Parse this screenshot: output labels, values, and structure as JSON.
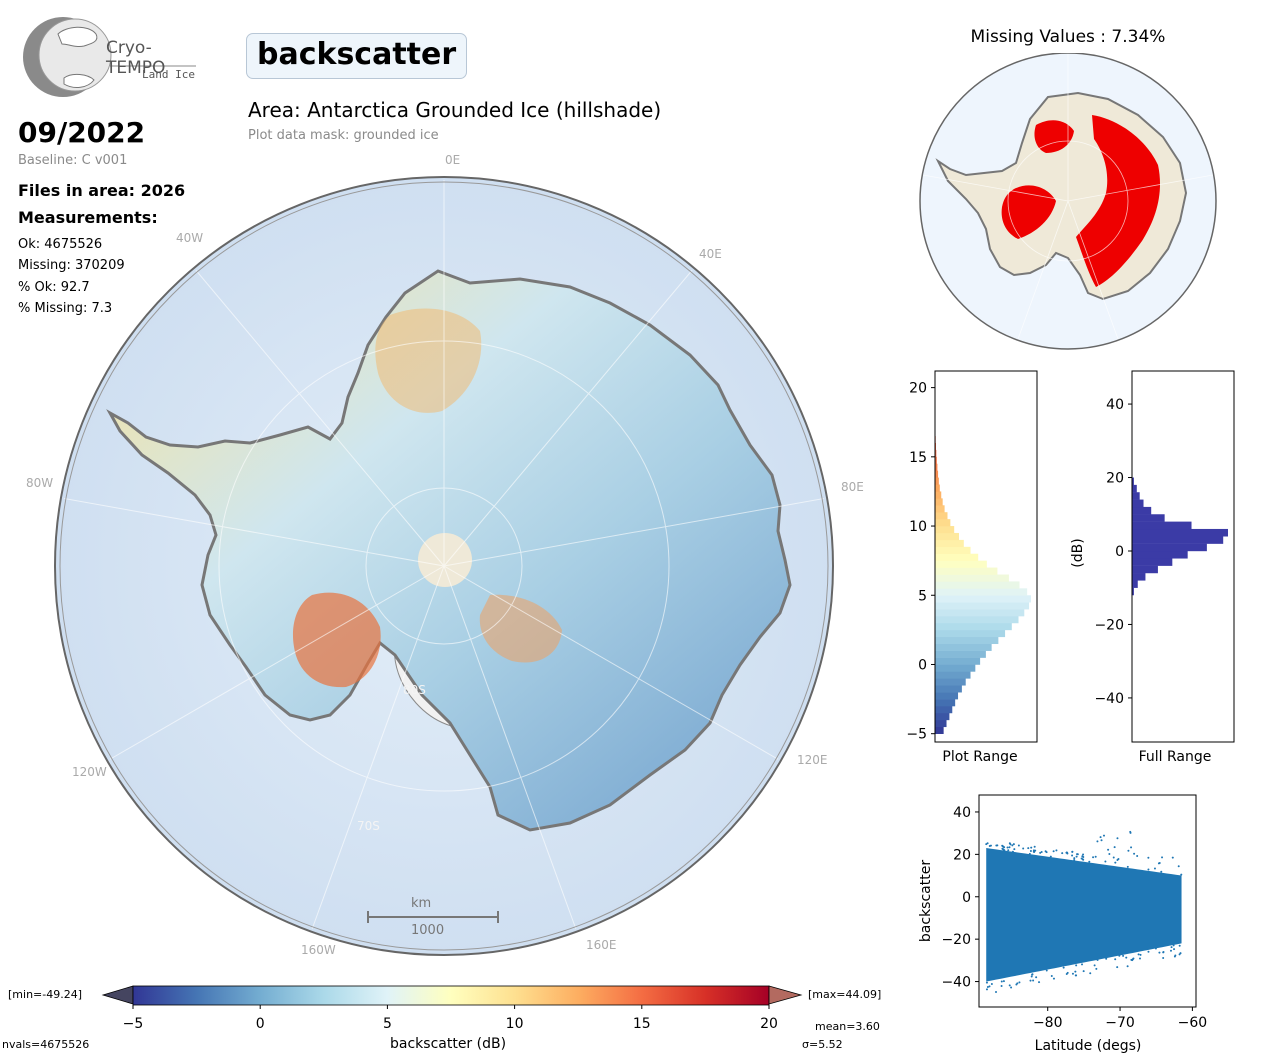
{
  "logo": {
    "name": "Cryo-TEMPO",
    "subtitle": "Land Ice"
  },
  "variable": "backscatter",
  "area_title": "Area: Antarctica Grounded Ice (hillshade)",
  "mask_note": "Plot data mask: grounded ice",
  "date": "09/2022",
  "baseline": "Baseline: C v001",
  "files": "Files in area: 2026",
  "measurements_title": "Measurements:",
  "stats": {
    "ok": "Ok: 4675526",
    "missing": "Missing: 370209",
    "pct_ok": "% Ok: 92.7",
    "pct_missing": "% Missing: 7.3"
  },
  "map_labels": {
    "lon_0E": "0E",
    "lon_40W": "40W",
    "lon_40E": "40E",
    "lon_80W": "80W",
    "lon_80E": "80E",
    "lon_120W": "120W",
    "lon_120E": "120E",
    "lon_160W": "160W",
    "lon_160E": "160E",
    "lat_80S": "80S",
    "lat_70S": "70S"
  },
  "scalebar": {
    "unit": "km",
    "value": "1000"
  },
  "missing_title": "Missing Values : 7.34%",
  "colorbar": {
    "label": "backscatter (dB)",
    "min_label": "[min=-49.24]",
    "max_label": "[max=44.09]",
    "nvals": "nvals=4675526",
    "mean": "mean=3.60",
    "sigma": "σ=5.52"
  },
  "colors": {
    "ocean": "#d3e3f3",
    "ice_shelf": "#f1f1f1",
    "coast": "#777777",
    "missing": "#ee0000",
    "scatter": "#1f77b4",
    "fullhist": "#3b3ba6",
    "pole_hole": "#efe9d8"
  },
  "chart_data": [
    {
      "type": "bar",
      "orientation": "horizontal",
      "xlabel": "Plot Range",
      "ylim": [
        -5.6,
        21.2
      ],
      "yticks": [
        -5,
        0,
        5,
        10,
        15,
        20
      ],
      "bins": [
        -5,
        -4.5,
        -4,
        -3.5,
        -3,
        -2.5,
        -2,
        -1.5,
        -1,
        -0.5,
        0,
        0.5,
        1,
        1.5,
        2,
        2.5,
        3,
        3.5,
        4,
        4.5,
        5,
        5.5,
        6,
        6.5,
        7,
        7.5,
        8,
        8.5,
        9,
        9.5,
        10,
        10.5,
        11,
        11.5,
        12,
        12.5,
        13,
        13.5,
        14,
        14.5,
        15,
        15.5,
        16,
        16.5,
        17
      ],
      "values": [
        0.09,
        0.12,
        0.15,
        0.18,
        0.21,
        0.24,
        0.28,
        0.32,
        0.37,
        0.42,
        0.47,
        0.53,
        0.59,
        0.66,
        0.73,
        0.8,
        0.87,
        0.93,
        0.98,
        1.0,
        0.96,
        0.88,
        0.77,
        0.65,
        0.54,
        0.45,
        0.37,
        0.3,
        0.25,
        0.2,
        0.16,
        0.13,
        0.1,
        0.08,
        0.065,
        0.05,
        0.04,
        0.032,
        0.025,
        0.019,
        0.014,
        0.01,
        0.007,
        0.004,
        0.002
      ]
    },
    {
      "type": "bar",
      "orientation": "horizontal",
      "xlabel": "Full Range",
      "ylabel": "(dB)",
      "ylim": [
        -52,
        49
      ],
      "yticks": [
        -40,
        -20,
        0,
        20,
        40
      ],
      "bins": [
        -12,
        -10,
        -8,
        -6,
        -4,
        -2,
        0,
        2,
        4,
        6,
        8,
        10,
        12,
        14,
        16,
        18
      ],
      "values": [
        0.02,
        0.06,
        0.14,
        0.27,
        0.42,
        0.58,
        0.78,
        0.95,
        1.0,
        0.62,
        0.34,
        0.2,
        0.12,
        0.08,
        0.05,
        0.02
      ]
    },
    {
      "type": "scatter",
      "xlabel": "Latitude (degs)",
      "ylabel": "backscatter",
      "xlim": [
        -89.5,
        -59.5
      ],
      "ylim": [
        -52,
        48
      ],
      "xticks": [
        -80,
        -70,
        -60
      ],
      "yticks": [
        -40,
        -20,
        0,
        20,
        40
      ],
      "band": {
        "x_start": -88.5,
        "x_end": -61.5,
        "upper_start": 23,
        "upper_end": 10,
        "lower_start": -40,
        "lower_end": -22
      }
    },
    {
      "type": "colorbar",
      "xlim": [
        -5,
        20
      ],
      "xticks": [
        -5,
        0,
        5,
        10,
        15,
        20
      ]
    }
  ]
}
